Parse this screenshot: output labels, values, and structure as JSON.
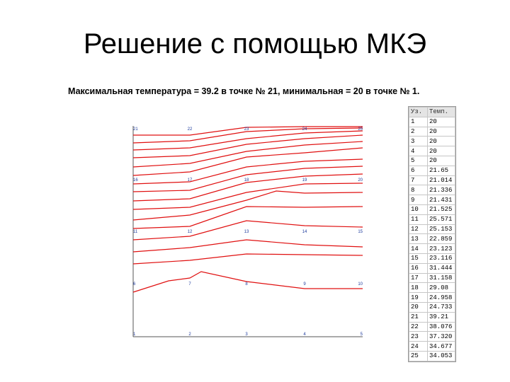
{
  "slide": {
    "title": "Решение с помощью МКЭ",
    "caption": "Максимальная температура = 39.2 в точке № 21, минимальная = 20 в точке № 1."
  },
  "table": {
    "headers": [
      "Уз.",
      "Темп."
    ],
    "rows": [
      [
        "1",
        "20"
      ],
      [
        "2",
        "20"
      ],
      [
        "3",
        "20"
      ],
      [
        "4",
        "20"
      ],
      [
        "5",
        "20"
      ],
      [
        "6",
        "21.65"
      ],
      [
        "7",
        "21.014"
      ],
      [
        "8",
        "21.336"
      ],
      [
        "9",
        "21.431"
      ],
      [
        "10",
        "21.525"
      ],
      [
        "11",
        "25.571"
      ],
      [
        "12",
        "25.153"
      ],
      [
        "13",
        "22.859"
      ],
      [
        "14",
        "23.123"
      ],
      [
        "15",
        "23.116"
      ],
      [
        "16",
        "31.444"
      ],
      [
        "17",
        "31.158"
      ],
      [
        "18",
        "29.08"
      ],
      [
        "19",
        "24.958"
      ],
      [
        "20",
        "24.733"
      ],
      [
        "21",
        "39.21"
      ],
      [
        "22",
        "38.076"
      ],
      [
        "23",
        "37.320"
      ],
      [
        "24",
        "34.677"
      ],
      [
        "25",
        "34.053"
      ]
    ]
  },
  "mesh": {
    "node_labels": [
      {
        "n": "21",
        "col": 0,
        "row": 0
      },
      {
        "n": "22",
        "col": 1,
        "row": 0
      },
      {
        "n": "23",
        "col": 2,
        "row": 0
      },
      {
        "n": "24",
        "col": 3,
        "row": 0
      },
      {
        "n": "25",
        "col": 4,
        "row": 0
      },
      {
        "n": "16",
        "col": 0,
        "row": 1
      },
      {
        "n": "17",
        "col": 1,
        "row": 1
      },
      {
        "n": "18",
        "col": 2,
        "row": 1
      },
      {
        "n": "19",
        "col": 3,
        "row": 1
      },
      {
        "n": "20",
        "col": 4,
        "row": 1
      },
      {
        "n": "11",
        "col": 0,
        "row": 2
      },
      {
        "n": "12",
        "col": 1,
        "row": 2
      },
      {
        "n": "13",
        "col": 2,
        "row": 2
      },
      {
        "n": "14",
        "col": 3,
        "row": 2
      },
      {
        "n": "15",
        "col": 4,
        "row": 2
      },
      {
        "n": "6",
        "col": 0,
        "row": 3
      },
      {
        "n": "7",
        "col": 1,
        "row": 3
      },
      {
        "n": "8",
        "col": 2,
        "row": 3
      },
      {
        "n": "9",
        "col": 3,
        "row": 3
      },
      {
        "n": "10",
        "col": 4,
        "row": 3
      },
      {
        "n": "1",
        "col": 0,
        "row": 4
      },
      {
        "n": "2",
        "col": 1,
        "row": 4
      },
      {
        "n": "3",
        "col": 2,
        "row": 4
      },
      {
        "n": "4",
        "col": 3,
        "row": 4
      },
      {
        "n": "5",
        "col": 4,
        "row": 4
      }
    ],
    "label_color": "#1f3c9e",
    "isoline_color": "#e01010",
    "axis_color": "#555555"
  }
}
